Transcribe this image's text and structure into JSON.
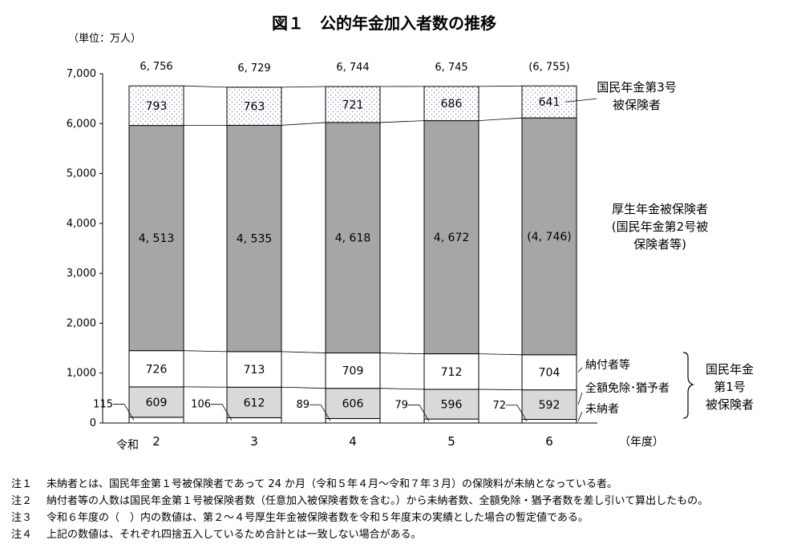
{
  "chart_data": {
    "type": "bar",
    "stacked": true,
    "title": "図１　公的年金加入者数の推移",
    "unit_label": "（単位：万人）",
    "era_label": "令和",
    "x_unit_label": "（年度）",
    "categories": [
      "2",
      "3",
      "4",
      "5",
      "6"
    ],
    "ylim": [
      0,
      7000
    ],
    "yticks": [
      "0",
      "1,000",
      "2,000",
      "3,000",
      "4,000",
      "5,000",
      "6,000",
      "7,000"
    ],
    "ytick_values": [
      0,
      1000,
      2000,
      3000,
      4000,
      5000,
      6000,
      7000
    ],
    "series": [
      {
        "name": "未納者",
        "values": [
          115,
          106,
          89,
          79,
          72
        ],
        "labels": [
          "115",
          "106",
          "89",
          "79",
          "72"
        ],
        "fill": "#ffffff",
        "pattern": "none"
      },
      {
        "name": "全額免除・猶予者",
        "values": [
          609,
          612,
          606,
          596,
          592
        ],
        "labels": [
          "609",
          "612",
          "606",
          "596",
          "592"
        ],
        "fill": "#d9d9d9",
        "pattern": "none"
      },
      {
        "name": "納付者等",
        "values": [
          726,
          713,
          709,
          712,
          704
        ],
        "labels": [
          "726",
          "713",
          "709",
          "712",
          "704"
        ],
        "fill": "#ffffff",
        "pattern": "none"
      },
      {
        "name": "厚生年金被保険者（国民年金第2号被保険者等）",
        "values": [
          4513,
          4535,
          4618,
          4672,
          4746
        ],
        "labels": [
          "4, 513",
          "4, 535",
          "4, 618",
          "4, 672",
          "(4, 746)"
        ],
        "fill": "#a6a6a6",
        "pattern": "none"
      },
      {
        "name": "国民年金第3号被保険者",
        "values": [
          793,
          763,
          721,
          686,
          641
        ],
        "labels": [
          "793",
          "763",
          "721",
          "686",
          "641"
        ],
        "fill": "#ffffff",
        "pattern": "dots"
      }
    ],
    "totals": [
      6756,
      6729,
      6744,
      6745,
      6755
    ],
    "total_labels": [
      "6, 756",
      "6, 729",
      "6, 744",
      "6, 745",
      "(6, 755)"
    ],
    "legend_labels": {
      "s4": [
        "国民年金第3号",
        "被保険者"
      ],
      "s3": [
        "厚生年金被保険者",
        "(国民年金第2号被",
        "保険者等)"
      ],
      "s2": [
        "納付者等"
      ],
      "s1": [
        "全額免除･猶予者"
      ],
      "s0": [
        "未納者"
      ],
      "group": [
        "国民年金",
        "第1号",
        "被保険者"
      ]
    },
    "grid": false,
    "legend_position": "right"
  },
  "notes": [
    {
      "label": "注１",
      "text": "未納者とは、国民年金第１号被保険者であって 24 か月（令和５年４月～令和７年３月）の保険料が未納となっている者。"
    },
    {
      "label": "注２",
      "text": "納付者等の人数は国民年金第１号被保険者数（任意加入被保険者数を含む。）から未納者数、全額免除・猶予者数を差し引いて算出したもの。"
    },
    {
      "label": "注３",
      "text": "令和６年度の（　）内の数値は、第２～４号厚生年金被保険者数を令和５年度末の実績とした場合の暫定値である。"
    },
    {
      "label": "注４",
      "text": "上記の数値は、それぞれ四捨五入しているため合計とは一致しない場合がある。"
    }
  ]
}
